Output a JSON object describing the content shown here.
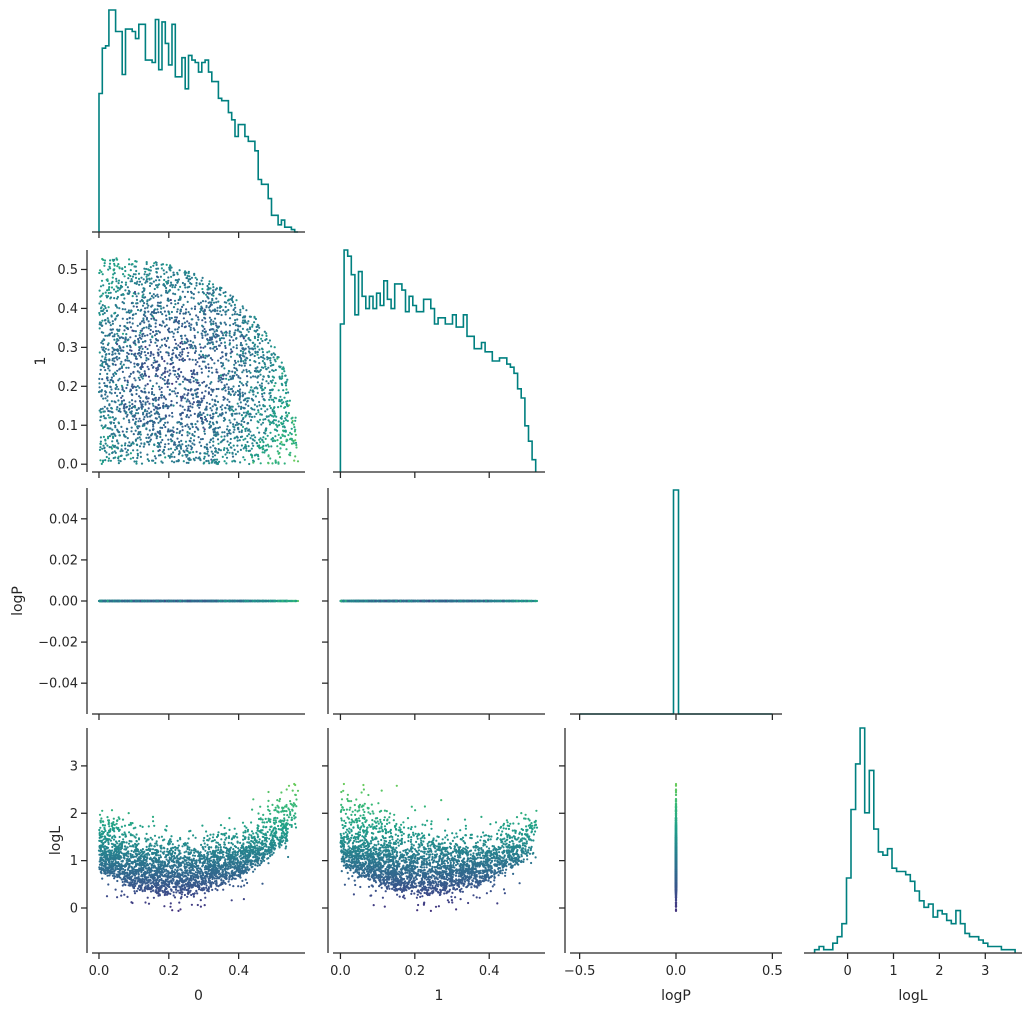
{
  "chart_data": {
    "type": "corner",
    "variables": [
      "0",
      "1",
      "logP",
      "logL"
    ],
    "histogram_color": "#008080",
    "scatter_colormap": "viridis",
    "scatter_color_by": "logL",
    "n_samples_estimate": 3000,
    "grid": false,
    "layout": "lower-triangle",
    "axes": {
      "0": {
        "label": "0",
        "range": [
          -0.02,
          0.59
        ],
        "ticks": [
          0.0,
          0.2,
          0.4
        ],
        "tick_labels": [
          "0.0",
          "0.2",
          "0.4"
        ]
      },
      "1": {
        "label": "1",
        "range": [
          -0.02,
          0.55
        ],
        "ticks": [
          0.0,
          0.1,
          0.2,
          0.3,
          0.4,
          0.5
        ],
        "tick_labels": [
          "0.0",
          "0.1",
          "0.2",
          "0.3",
          "0.4",
          "0.5"
        ],
        "x_tick_labels": [
          "0.0",
          "0.2",
          "0.4"
        ],
        "x_ticks": [
          0.0,
          0.2,
          0.4
        ]
      },
      "logP": {
        "label": "logP",
        "range": [
          -0.055,
          0.055
        ],
        "ticks": [
          -0.04,
          -0.02,
          0.0,
          0.02,
          0.04
        ],
        "tick_labels": [
          "−0.04",
          "−0.02",
          "0.00",
          "0.02",
          "0.04"
        ],
        "x_range": [
          -0.55,
          0.55
        ],
        "x_ticks": [
          -0.5,
          0.0,
          0.5
        ],
        "x_tick_labels": [
          "−0.5",
          "0.0",
          "0.5"
        ]
      },
      "logL": {
        "label": "logL",
        "range": [
          -0.95,
          3.8
        ],
        "ticks": [
          0,
          1,
          2,
          3
        ],
        "tick_labels": [
          "0",
          "1",
          "2",
          "3"
        ]
      }
    },
    "marginals": {
      "0": {
        "bin_edges_range": [
          0.0,
          0.57
        ],
        "counts": [
          58,
          77,
          78,
          93,
          93,
          84,
          84,
          66,
          85,
          85,
          84,
          81,
          87,
          87,
          72,
          72,
          71,
          89,
          68,
          88,
          79,
          70,
          87,
          65,
          65,
          73,
          60,
          74,
          72,
          71,
          67,
          71,
          72,
          67,
          63,
          63,
          56,
          55,
          55,
          50,
          47,
          40,
          45,
          45,
          40,
          38,
          38,
          34,
          22,
          20,
          20,
          14,
          7,
          7,
          3,
          5,
          2,
          2,
          1,
          0
        ]
      },
      "1": {
        "bin_edges_range": [
          0.0,
          0.525
        ],
        "counts": [
          48,
          72,
          70,
          64,
          51,
          65,
          57,
          53,
          57,
          53,
          58,
          54,
          62,
          56,
          53,
          61,
          61,
          59,
          52,
          57,
          54,
          52,
          52,
          56,
          56,
          53,
          48,
          50,
          50,
          48,
          48,
          51,
          47,
          47,
          51,
          44,
          44,
          40,
          40,
          42,
          39,
          39,
          36,
          36,
          37,
          37,
          35,
          34,
          32,
          27,
          24,
          15,
          10,
          4
        ]
      },
      "logP": {
        "bin_edges_range": [
          -0.5,
          0.5
        ],
        "spike_at": 0.0,
        "spike_height": 1.0
      },
      "logL": {
        "bin_edges_range": [
          -0.72,
          3.65
        ],
        "counts": [
          1,
          2,
          1,
          1,
          3,
          5,
          9,
          23,
          44,
          58,
          69,
          43,
          56,
          38,
          31,
          30,
          32,
          26,
          25,
          25,
          24,
          22,
          19,
          16,
          14,
          15,
          11,
          13,
          12,
          10,
          9,
          13,
          9,
          6,
          5,
          5,
          4,
          3,
          2,
          2,
          2,
          1,
          1,
          1
        ]
      }
    }
  }
}
